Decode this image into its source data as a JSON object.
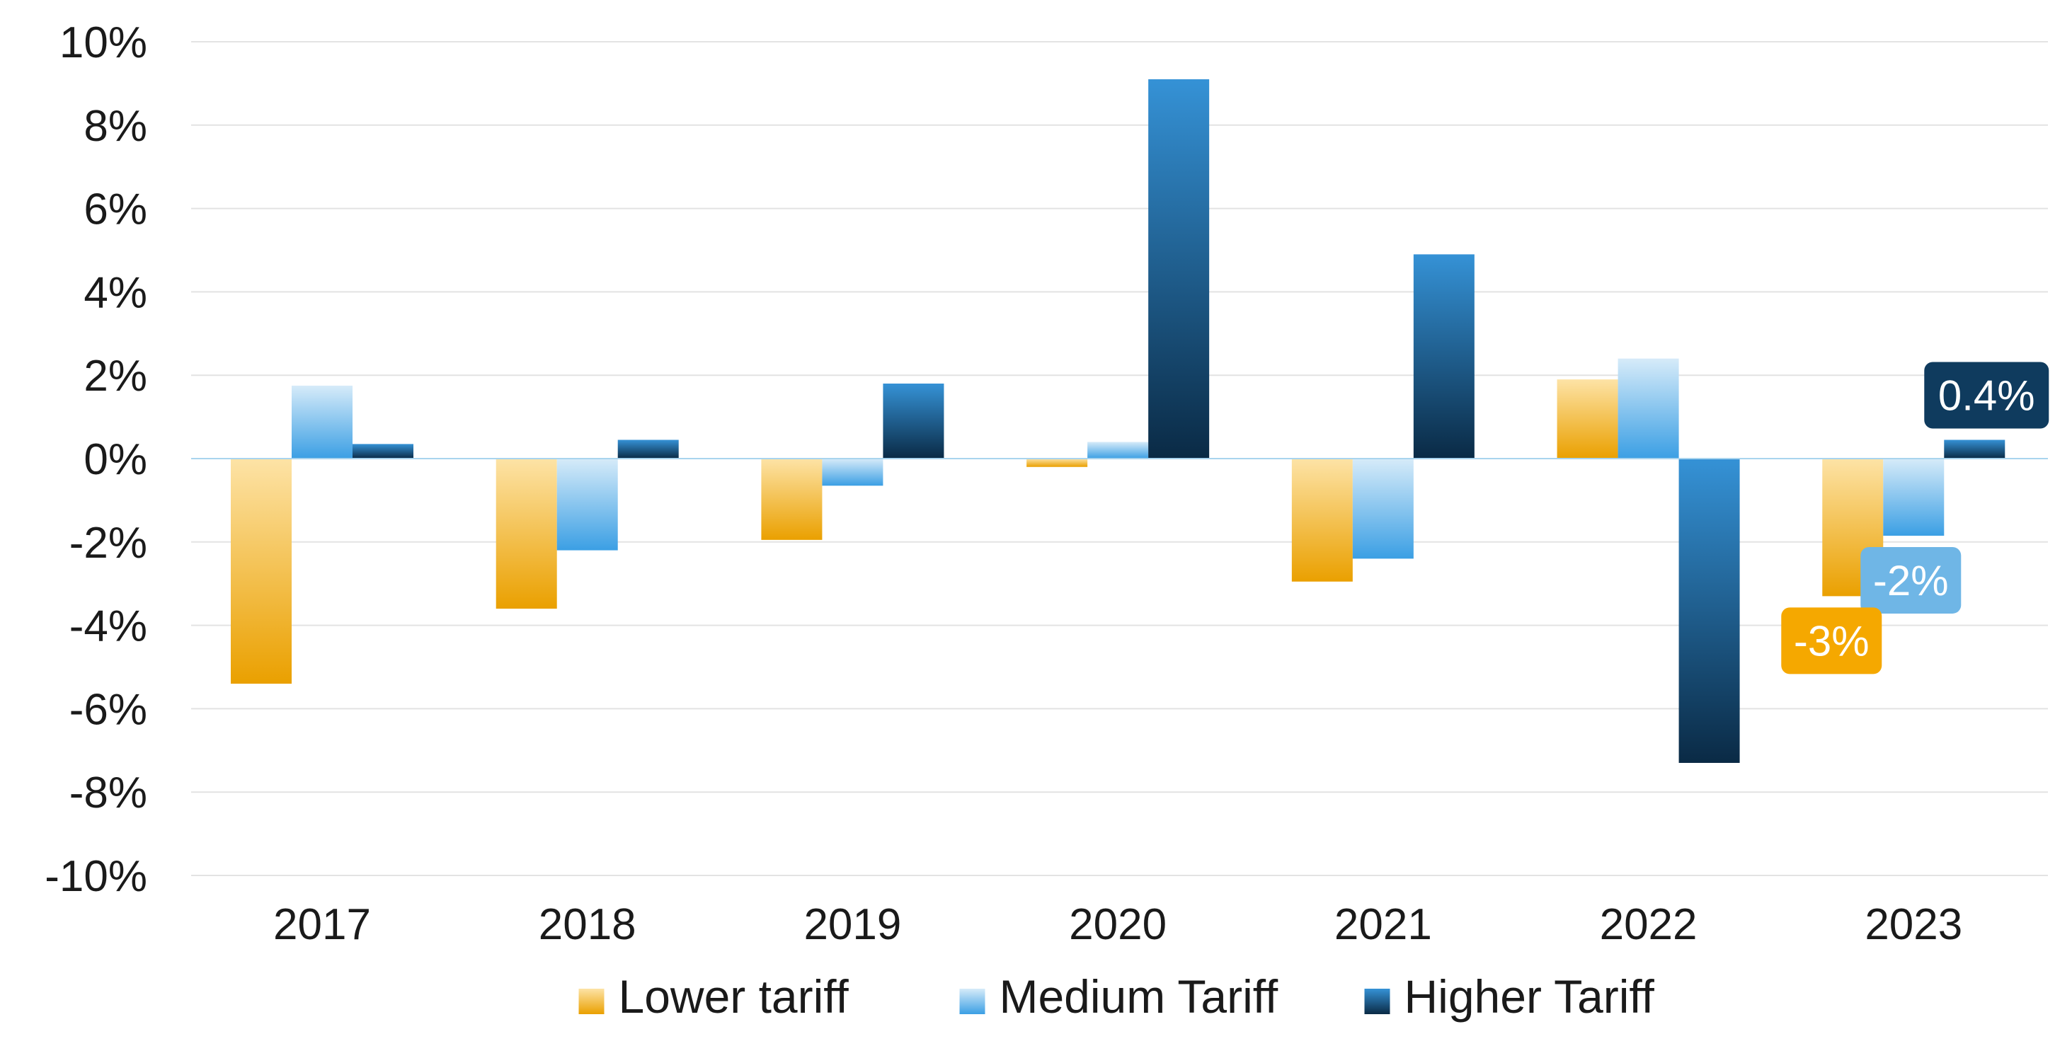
{
  "chart_data": {
    "type": "bar",
    "title": "",
    "xlabel": "",
    "ylabel": "",
    "categories": [
      "2017",
      "2018",
      "2019",
      "2020",
      "2021",
      "2022",
      "2023"
    ],
    "series": [
      {
        "name": "Lower tariff",
        "values": [
          -5.4,
          -3.6,
          -1.95,
          -0.2,
          -2.95,
          1.9,
          -3.3
        ],
        "color": "#f5a800"
      },
      {
        "name": "Medium Tariff",
        "values": [
          1.75,
          -2.2,
          -0.65,
          0.4,
          -2.4,
          2.4,
          -1.85
        ],
        "color": "#42a5e8"
      },
      {
        "name": "Higher Tariff",
        "values": [
          0.35,
          0.45,
          1.8,
          9.1,
          4.9,
          -7.3,
          0.45
        ],
        "color": "#0f3b5e"
      }
    ],
    "ylim": [
      -10,
      10
    ],
    "y_ticks": [
      10,
      8,
      6,
      4,
      2,
      0,
      -2,
      -4,
      -6,
      -8,
      -10
    ],
    "y_tick_labels": [
      "10%",
      "8%",
      "6%",
      "4%",
      "2%",
      "0%",
      "-2%",
      "-4%",
      "-6%",
      "-8%",
      "-10%"
    ],
    "grid": true,
    "legend_position": "bottom",
    "annotations": [
      {
        "series": "Higher Tariff",
        "category": "2023",
        "text": "0.4%",
        "color": "#0f3b5e"
      },
      {
        "series": "Medium Tariff",
        "category": "2023",
        "text": "-2%",
        "color": "#6fb6e6"
      },
      {
        "series": "Lower tariff",
        "category": "2023",
        "text": "-3%",
        "color": "#f5a800"
      }
    ]
  }
}
